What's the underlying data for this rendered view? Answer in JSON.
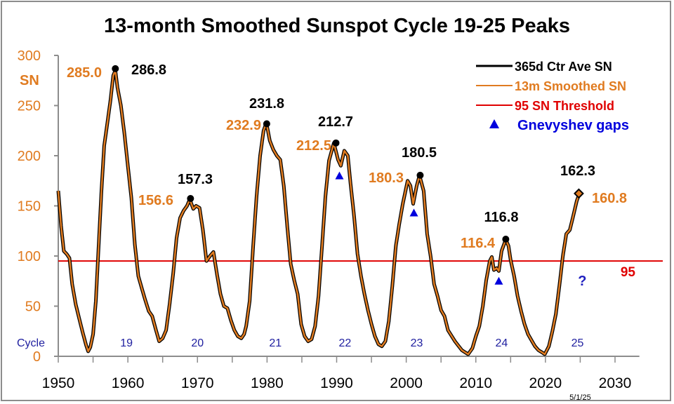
{
  "chart_data": {
    "type": "line",
    "title": "13-month Smoothed Sunspot Cycle 19-25 Peaks",
    "ylabel": "SN",
    "xlabel": "",
    "xlim": [
      1950,
      2033.5
    ],
    "ylim": [
      0,
      300
    ],
    "x_ticks": [
      1950,
      1960,
      1970,
      1980,
      1990,
      2000,
      2010,
      2020,
      2030
    ],
    "y_ticks": [
      0,
      50,
      100,
      150,
      200,
      250,
      300
    ],
    "grid": false,
    "legend_position": "top-right",
    "legend": [
      {
        "label": "365d Ctr Ave SN",
        "color": "#000000",
        "kind": "line"
      },
      {
        "label": "13m Smoothed SN",
        "color": "#e07b20",
        "kind": "line"
      },
      {
        "label": "95 SN Threshold",
        "color": "#e00000",
        "kind": "line"
      },
      {
        "label": "Gnevyshev gaps",
        "color": "#0000dd",
        "kind": "triangle"
      }
    ],
    "threshold": {
      "value": 95,
      "label": "95"
    },
    "series": [
      {
        "name": "13m Smoothed SN",
        "points": [
          [
            1950.0,
            165
          ],
          [
            1950.4,
            130
          ],
          [
            1950.8,
            105
          ],
          [
            1951.2,
            102
          ],
          [
            1951.6,
            98
          ],
          [
            1952.0,
            72
          ],
          [
            1952.5,
            52
          ],
          [
            1953.0,
            38
          ],
          [
            1953.5,
            24
          ],
          [
            1954.0,
            11
          ],
          [
            1954.3,
            5
          ],
          [
            1954.6,
            9
          ],
          [
            1955.0,
            22
          ],
          [
            1955.4,
            55
          ],
          [
            1955.8,
            110
          ],
          [
            1956.2,
            165
          ],
          [
            1956.6,
            210
          ],
          [
            1957.0,
            230
          ],
          [
            1957.5,
            255
          ],
          [
            1957.9,
            280
          ],
          [
            1958.2,
            285
          ],
          [
            1958.5,
            268
          ],
          [
            1959.0,
            250
          ],
          [
            1959.5,
            222
          ],
          [
            1960.0,
            190
          ],
          [
            1960.5,
            158
          ],
          [
            1961.0,
            112
          ],
          [
            1961.5,
            80
          ],
          [
            1962.0,
            68
          ],
          [
            1962.5,
            56
          ],
          [
            1963.0,
            45
          ],
          [
            1963.5,
            40
          ],
          [
            1964.0,
            27
          ],
          [
            1964.5,
            15
          ],
          [
            1965.0,
            18
          ],
          [
            1965.5,
            26
          ],
          [
            1966.0,
            52
          ],
          [
            1966.5,
            82
          ],
          [
            1967.0,
            118
          ],
          [
            1967.5,
            138
          ],
          [
            1968.0,
            145
          ],
          [
            1968.5,
            150
          ],
          [
            1968.9,
            156.6
          ],
          [
            1969.4,
            147
          ],
          [
            1969.8,
            150
          ],
          [
            1970.3,
            148
          ],
          [
            1970.8,
            125
          ],
          [
            1971.3,
            95
          ],
          [
            1971.8,
            100
          ],
          [
            1972.3,
            104
          ],
          [
            1972.8,
            82
          ],
          [
            1973.3,
            62
          ],
          [
            1973.8,
            50
          ],
          [
            1974.3,
            48
          ],
          [
            1974.8,
            36
          ],
          [
            1975.3,
            26
          ],
          [
            1975.8,
            20
          ],
          [
            1976.3,
            18
          ],
          [
            1976.7,
            22
          ],
          [
            1977.0,
            30
          ],
          [
            1977.5,
            55
          ],
          [
            1978.0,
            110
          ],
          [
            1978.5,
            160
          ],
          [
            1979.0,
            200
          ],
          [
            1979.5,
            225
          ],
          [
            1979.9,
            232.9
          ],
          [
            1980.4,
            215
          ],
          [
            1980.9,
            206
          ],
          [
            1981.4,
            200
          ],
          [
            1981.9,
            196
          ],
          [
            1982.4,
            170
          ],
          [
            1982.9,
            130
          ],
          [
            1983.4,
            92
          ],
          [
            1983.9,
            76
          ],
          [
            1984.4,
            62
          ],
          [
            1984.9,
            32
          ],
          [
            1985.4,
            20
          ],
          [
            1985.9,
            15
          ],
          [
            1986.4,
            17
          ],
          [
            1986.9,
            30
          ],
          [
            1987.4,
            60
          ],
          [
            1987.9,
            110
          ],
          [
            1988.4,
            160
          ],
          [
            1988.9,
            195
          ],
          [
            1989.6,
            212.5
          ],
          [
            1990.2,
            196
          ],
          [
            1990.6,
            190
          ],
          [
            1991.1,
            205
          ],
          [
            1991.6,
            200
          ],
          [
            1992.0,
            172
          ],
          [
            1992.5,
            140
          ],
          [
            1993.0,
            102
          ],
          [
            1993.5,
            80
          ],
          [
            1994.0,
            62
          ],
          [
            1994.5,
            46
          ],
          [
            1995.0,
            32
          ],
          [
            1995.5,
            20
          ],
          [
            1996.0,
            12
          ],
          [
            1996.5,
            10
          ],
          [
            1997.0,
            15
          ],
          [
            1997.5,
            35
          ],
          [
            1998.0,
            70
          ],
          [
            1998.5,
            110
          ],
          [
            1999.0,
            132
          ],
          [
            1999.5,
            152
          ],
          [
            2000.2,
            175
          ],
          [
            2000.6,
            170
          ],
          [
            2001.0,
            152
          ],
          [
            2001.5,
            170
          ],
          [
            2001.9,
            180.3
          ],
          [
            2002.5,
            165
          ],
          [
            2003.0,
            122
          ],
          [
            2003.5,
            100
          ],
          [
            2004.0,
            72
          ],
          [
            2004.5,
            60
          ],
          [
            2005.0,
            46
          ],
          [
            2005.5,
            40
          ],
          [
            2006.0,
            26
          ],
          [
            2007.0,
            15
          ],
          [
            2008.0,
            6
          ],
          [
            2008.9,
            2
          ],
          [
            2009.5,
            8
          ],
          [
            2010.0,
            20
          ],
          [
            2010.5,
            30
          ],
          [
            2011.0,
            50
          ],
          [
            2011.5,
            76
          ],
          [
            2012.0,
            95
          ],
          [
            2012.3,
            99
          ],
          [
            2012.6,
            86
          ],
          [
            2013.0,
            88
          ],
          [
            2013.3,
            85
          ],
          [
            2013.7,
            105
          ],
          [
            2014.3,
            116.4
          ],
          [
            2014.7,
            110
          ],
          [
            2015.0,
            96
          ],
          [
            2015.5,
            80
          ],
          [
            2016.0,
            60
          ],
          [
            2016.5,
            45
          ],
          [
            2017.0,
            32
          ],
          [
            2017.5,
            22
          ],
          [
            2018.0,
            16
          ],
          [
            2018.5,
            10
          ],
          [
            2019.0,
            6
          ],
          [
            2019.5,
            4
          ],
          [
            2019.9,
            2
          ],
          [
            2020.5,
            10
          ],
          [
            2021.0,
            25
          ],
          [
            2021.5,
            42
          ],
          [
            2022.0,
            70
          ],
          [
            2022.5,
            100
          ],
          [
            2023.0,
            122
          ],
          [
            2023.5,
            126
          ],
          [
            2024.0,
            140
          ],
          [
            2024.5,
            155
          ],
          [
            2024.8,
            160.8
          ]
        ]
      }
    ],
    "peaks": [
      {
        "cycle": "19",
        "x": 1958.2,
        "ctr_ave": 286.8,
        "ctr_label": "286.8",
        "smoothed_label": "285.0",
        "marker": "circle"
      },
      {
        "cycle": "20",
        "x": 1969.0,
        "ctr_ave": 157.3,
        "ctr_label": "157.3",
        "smoothed_label": "156.6",
        "marker": "circle"
      },
      {
        "cycle": "21",
        "x": 1979.95,
        "ctr_ave": 231.8,
        "ctr_label": "231.8",
        "smoothed_label": "232.9",
        "marker": "circle"
      },
      {
        "cycle": "22",
        "x": 1989.9,
        "ctr_ave": 212.7,
        "ctr_label": "212.7",
        "smoothed_label": "212.5",
        "marker": "circle"
      },
      {
        "cycle": "23",
        "x": 2002.0,
        "ctr_ave": 180.5,
        "ctr_label": "180.5",
        "smoothed_label": "180.3",
        "marker": "circle"
      },
      {
        "cycle": "24",
        "x": 2014.3,
        "ctr_ave": 116.8,
        "ctr_label": "116.8",
        "smoothed_label": "116.4",
        "marker": "circle"
      },
      {
        "cycle": "25",
        "x": 2024.8,
        "ctr_ave": 162.3,
        "ctr_label": "162.3",
        "smoothed_label": "160.8",
        "marker": "diamond"
      }
    ],
    "gnevyshev_gaps": [
      [
        1990.4,
        180
      ],
      [
        2001.1,
        143
      ],
      [
        2013.3,
        75
      ]
    ],
    "cycle_row_label": "Cycle",
    "cycle_labels": [
      {
        "label": "19",
        "x": 1959.8
      },
      {
        "label": "20",
        "x": 1970.0
      },
      {
        "label": "21",
        "x": 1981.2
      },
      {
        "label": "22",
        "x": 1991.2
      },
      {
        "label": "23",
        "x": 2001.5
      },
      {
        "label": "24",
        "x": 2013.7
      },
      {
        "label": "25",
        "x": 2024.6
      }
    ],
    "annotations": [
      {
        "text": "?",
        "x": 2025.3,
        "y": 75
      },
      {
        "text": "5/1/25",
        "x": 2025,
        "y": -40
      }
    ]
  }
}
